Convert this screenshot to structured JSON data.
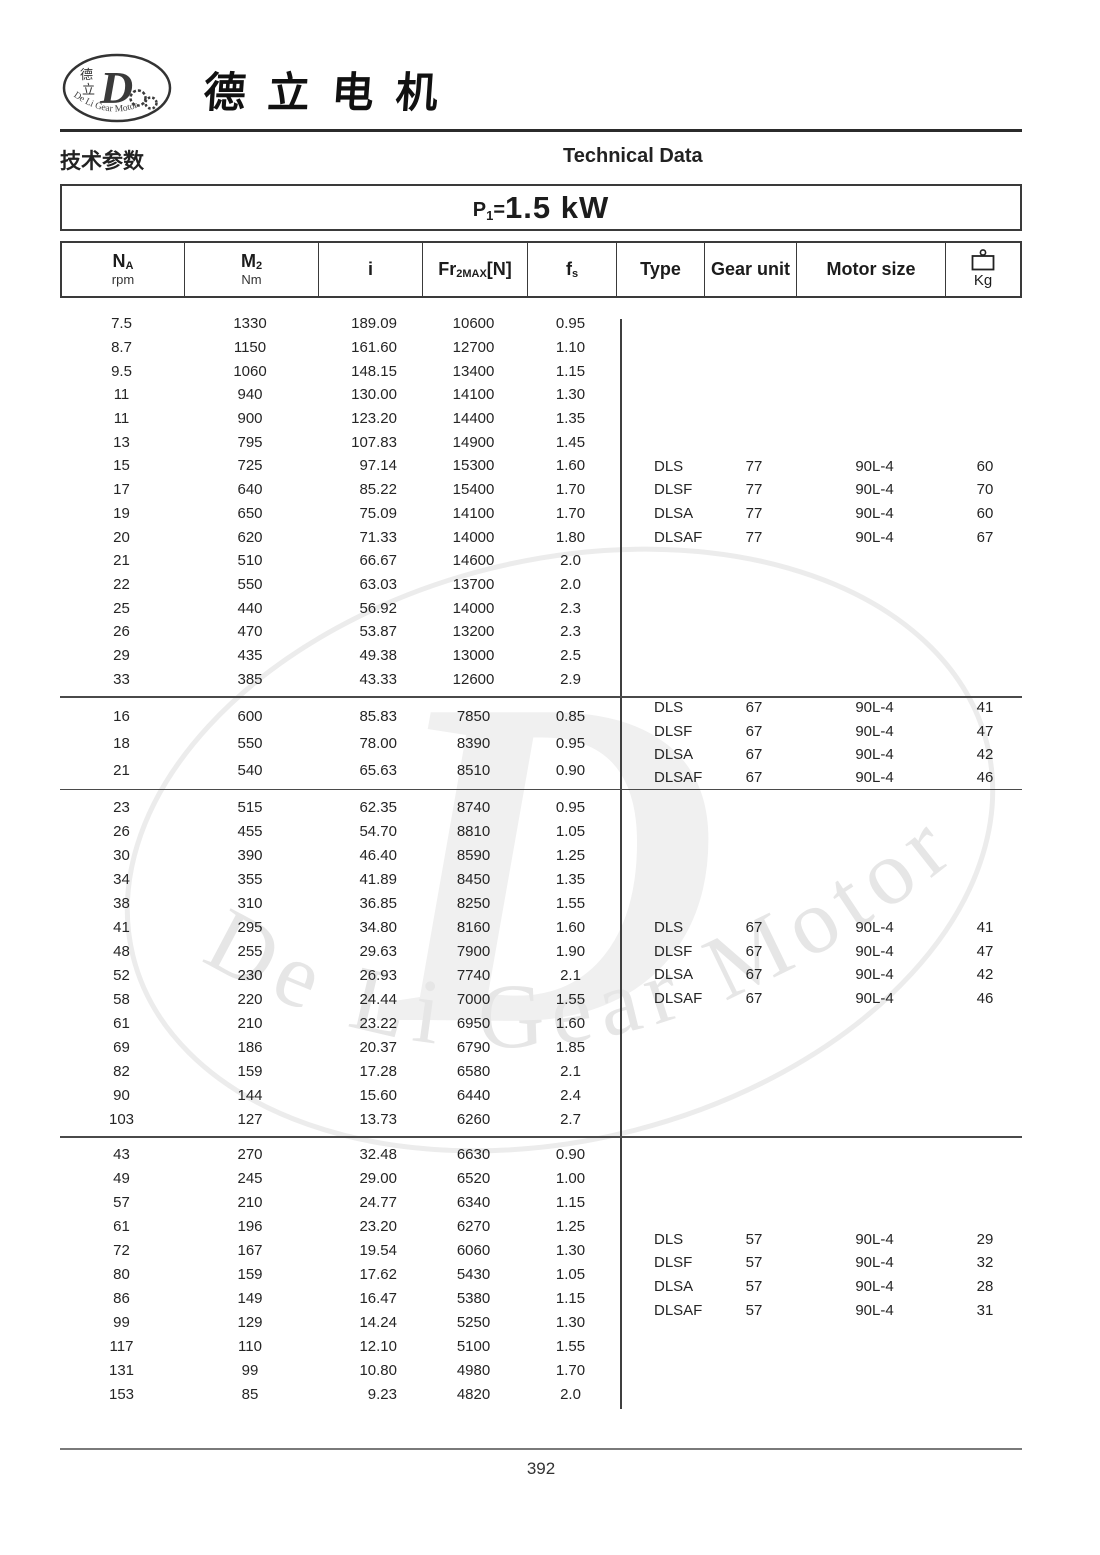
{
  "page": {
    "brand_cn": "德立电机",
    "section_cn": "技术参数",
    "section_en": "Technical Data",
    "page_number": "392"
  },
  "logo": {
    "monogram": "D",
    "cn_top": "德",
    "cn_bottom": "立",
    "ring_text": "De Li Gear Motor"
  },
  "watermark_text": "De Li Gear Motor",
  "power": {
    "p": "P",
    "sub": "1",
    "eq": "=",
    "value": "1.5 kW"
  },
  "table": {
    "headers": {
      "na_main": "N",
      "na_sub": "A",
      "na_unit": "rpm",
      "m2_main": "M",
      "m2_sub": "2",
      "m2_unit": "Nm",
      "i": "i",
      "fr_main": "Fr",
      "fr_sub": "2MAX",
      "fr_suffix": "[N]",
      "fs_main": "f",
      "fs_sub": "s",
      "type": "Type",
      "gear_unit": "Gear unit",
      "motor_size": "Motor size",
      "kg": "Kg"
    },
    "blocks": [
      {
        "rows": [
          [
            "7.5",
            "1330",
            "189.09",
            "10600",
            "0.95"
          ],
          [
            "8.7",
            "1150",
            "161.60",
            "12700",
            "1.10"
          ],
          [
            "9.5",
            "1060",
            "148.15",
            "13400",
            "1.15"
          ],
          [
            "11",
            "940",
            "130.00",
            "14100",
            "1.30"
          ],
          [
            "11",
            "900",
            "123.20",
            "14400",
            "1.35"
          ],
          [
            "13",
            "795",
            "107.83",
            "14900",
            "1.45"
          ],
          [
            "15",
            "725",
            "97.14",
            "15300",
            "1.60"
          ],
          [
            "17",
            "640",
            "85.22",
            "15400",
            "1.70"
          ],
          [
            "19",
            "650",
            "75.09",
            "14100",
            "1.70"
          ],
          [
            "20",
            "620",
            "71.33",
            "14000",
            "1.80"
          ],
          [
            "21",
            "510",
            "66.67",
            "14600",
            "2.0"
          ],
          [
            "22",
            "550",
            "63.03",
            "13700",
            "2.0"
          ],
          [
            "25",
            "440",
            "56.92",
            "14000",
            "2.3"
          ],
          [
            "26",
            "470",
            "53.87",
            "13200",
            "2.3"
          ],
          [
            "29",
            "435",
            "49.38",
            "13000",
            "2.5"
          ],
          [
            "33",
            "385",
            "43.33",
            "12600",
            "2.9"
          ]
        ],
        "types": [
          [
            "DLS",
            "77",
            "90L-4",
            "60"
          ],
          [
            "DLSF",
            "77",
            "90L-4",
            "70"
          ],
          [
            "DLSA",
            "77",
            "90L-4",
            "60"
          ],
          [
            "DLSAF",
            "77",
            "90L-4",
            "67"
          ]
        ]
      },
      {
        "rows": [
          [
            "16",
            "600",
            "85.83",
            "7850",
            "0.85"
          ],
          [
            "18",
            "550",
            "78.00",
            "8390",
            "0.95"
          ],
          [
            "21",
            "540",
            "65.63",
            "8510",
            "0.90"
          ]
        ],
        "types": [
          [
            "DLS",
            "67",
            "90L-4",
            "41"
          ],
          [
            "DLSF",
            "67",
            "90L-4",
            "47"
          ],
          [
            "DLSA",
            "67",
            "90L-4",
            "42"
          ],
          [
            "DLSAF",
            "67",
            "90L-4",
            "46"
          ]
        ]
      },
      {
        "rows": [
          [
            "23",
            "515",
            "62.35",
            "8740",
            "0.95"
          ],
          [
            "26",
            "455",
            "54.70",
            "8810",
            "1.05"
          ],
          [
            "30",
            "390",
            "46.40",
            "8590",
            "1.25"
          ],
          [
            "34",
            "355",
            "41.89",
            "8450",
            "1.35"
          ],
          [
            "38",
            "310",
            "36.85",
            "8250",
            "1.55"
          ],
          [
            "41",
            "295",
            "34.80",
            "8160",
            "1.60"
          ],
          [
            "48",
            "255",
            "29.63",
            "7900",
            "1.90"
          ],
          [
            "52",
            "230",
            "26.93",
            "7740",
            "2.1"
          ],
          [
            "58",
            "220",
            "24.44",
            "7000",
            "1.55"
          ],
          [
            "61",
            "210",
            "23.22",
            "6950",
            "1.60"
          ],
          [
            "69",
            "186",
            "20.37",
            "6790",
            "1.85"
          ],
          [
            "82",
            "159",
            "17.28",
            "6580",
            "2.1"
          ],
          [
            "90",
            "144",
            "15.60",
            "6440",
            "2.4"
          ],
          [
            "103",
            "127",
            "13.73",
            "6260",
            "2.7"
          ]
        ],
        "types": [
          [
            "DLS",
            "67",
            "90L-4",
            "41"
          ],
          [
            "DLSF",
            "67",
            "90L-4",
            "47"
          ],
          [
            "DLSA",
            "67",
            "90L-4",
            "42"
          ],
          [
            "DLSAF",
            "67",
            "90L-4",
            "46"
          ]
        ]
      },
      {
        "rows": [
          [
            "43",
            "270",
            "32.48",
            "6630",
            "0.90"
          ],
          [
            "49",
            "245",
            "29.00",
            "6520",
            "1.00"
          ],
          [
            "57",
            "210",
            "24.77",
            "6340",
            "1.15"
          ],
          [
            "61",
            "196",
            "23.20",
            "6270",
            "1.25"
          ],
          [
            "72",
            "167",
            "19.54",
            "6060",
            "1.30"
          ],
          [
            "80",
            "159",
            "17.62",
            "5430",
            "1.05"
          ],
          [
            "86",
            "149",
            "16.47",
            "5380",
            "1.15"
          ],
          [
            "99",
            "129",
            "14.24",
            "5250",
            "1.30"
          ],
          [
            "117",
            "110",
            "12.10",
            "5100",
            "1.55"
          ],
          [
            "131",
            "99",
            "10.80",
            "4980",
            "1.70"
          ],
          [
            "153",
            "85",
            "9.23",
            "4820",
            "2.0"
          ]
        ],
        "types": [
          [
            "DLS",
            "57",
            "90L-4",
            "29"
          ],
          [
            "DLSF",
            "57",
            "90L-4",
            "32"
          ],
          [
            "DLSA",
            "57",
            "90L-4",
            "28"
          ],
          [
            "DLSAF",
            "57",
            "90L-4",
            "31"
          ]
        ]
      }
    ]
  }
}
